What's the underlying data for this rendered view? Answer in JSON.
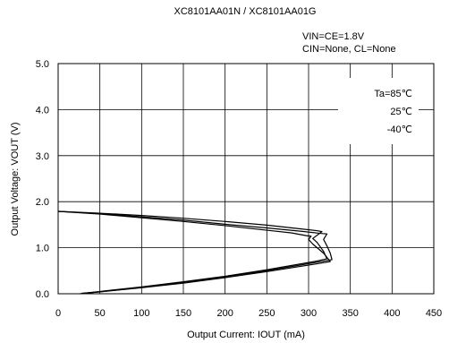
{
  "chart_data": {
    "type": "line",
    "title": "XC8101AA01N / XC8101AA01G",
    "xlabel": "Output Current: IOUT (mA)",
    "ylabel": "Output Voltage: VOUT (V)",
    "xlim": [
      0,
      450
    ],
    "ylim": [
      0,
      5
    ],
    "x_ticks": [
      "0",
      "50",
      "100",
      "150",
      "200",
      "250",
      "300",
      "350",
      "400",
      "450"
    ],
    "y_ticks": [
      "0.0",
      "1.0",
      "2.0",
      "3.0",
      "4.0",
      "5.0"
    ],
    "grid": true,
    "conditions": [
      "VIN=CE=1.8V",
      "CIN=None, CL=None"
    ],
    "legend_position": "top-right",
    "legend": [
      "Ta=85℃",
      "25℃",
      "-40℃"
    ],
    "series": [
      {
        "name": "Ta=85℃",
        "points": [
          [
            0,
            1.79
          ],
          [
            50,
            1.75
          ],
          [
            100,
            1.7
          ],
          [
            150,
            1.64
          ],
          [
            200,
            1.57
          ],
          [
            250,
            1.49
          ],
          [
            290,
            1.41
          ],
          [
            310,
            1.37
          ],
          [
            316,
            1.35
          ],
          [
            305,
            1.2
          ],
          [
            310,
            1.12
          ],
          [
            318,
            0.92
          ],
          [
            322,
            0.76
          ],
          [
            310,
            0.71
          ],
          [
            250,
            0.52
          ],
          [
            200,
            0.38
          ],
          [
            150,
            0.26
          ],
          [
            100,
            0.15
          ],
          [
            50,
            0.05
          ],
          [
            30,
            0.01
          ]
        ]
      },
      {
        "name": "25℃",
        "points": [
          [
            0,
            1.79
          ],
          [
            50,
            1.74
          ],
          [
            100,
            1.67
          ],
          [
            150,
            1.6
          ],
          [
            200,
            1.51
          ],
          [
            250,
            1.43
          ],
          [
            290,
            1.36
          ],
          [
            315,
            1.31
          ],
          [
            322,
            1.3
          ],
          [
            318,
            1.18
          ],
          [
            322,
            1.04
          ],
          [
            326,
            0.88
          ],
          [
            328,
            0.74
          ],
          [
            312,
            0.69
          ],
          [
            250,
            0.5
          ],
          [
            200,
            0.37
          ],
          [
            150,
            0.25
          ],
          [
            100,
            0.14
          ],
          [
            50,
            0.04
          ],
          [
            28,
            0.01
          ]
        ]
      },
      {
        "name": "-40℃",
        "points": [
          [
            0,
            1.79
          ],
          [
            50,
            1.73
          ],
          [
            100,
            1.65
          ],
          [
            150,
            1.57
          ],
          [
            200,
            1.48
          ],
          [
            250,
            1.38
          ],
          [
            280,
            1.32
          ],
          [
            298,
            1.26
          ],
          [
            303,
            1.25
          ],
          [
            300,
            1.18
          ],
          [
            305,
            1.08
          ],
          [
            318,
            0.88
          ],
          [
            326,
            0.7
          ],
          [
            310,
            0.65
          ],
          [
            250,
            0.48
          ],
          [
            200,
            0.35
          ],
          [
            150,
            0.23
          ],
          [
            100,
            0.13
          ],
          [
            50,
            0.04
          ],
          [
            26,
            0.0
          ]
        ]
      }
    ]
  }
}
